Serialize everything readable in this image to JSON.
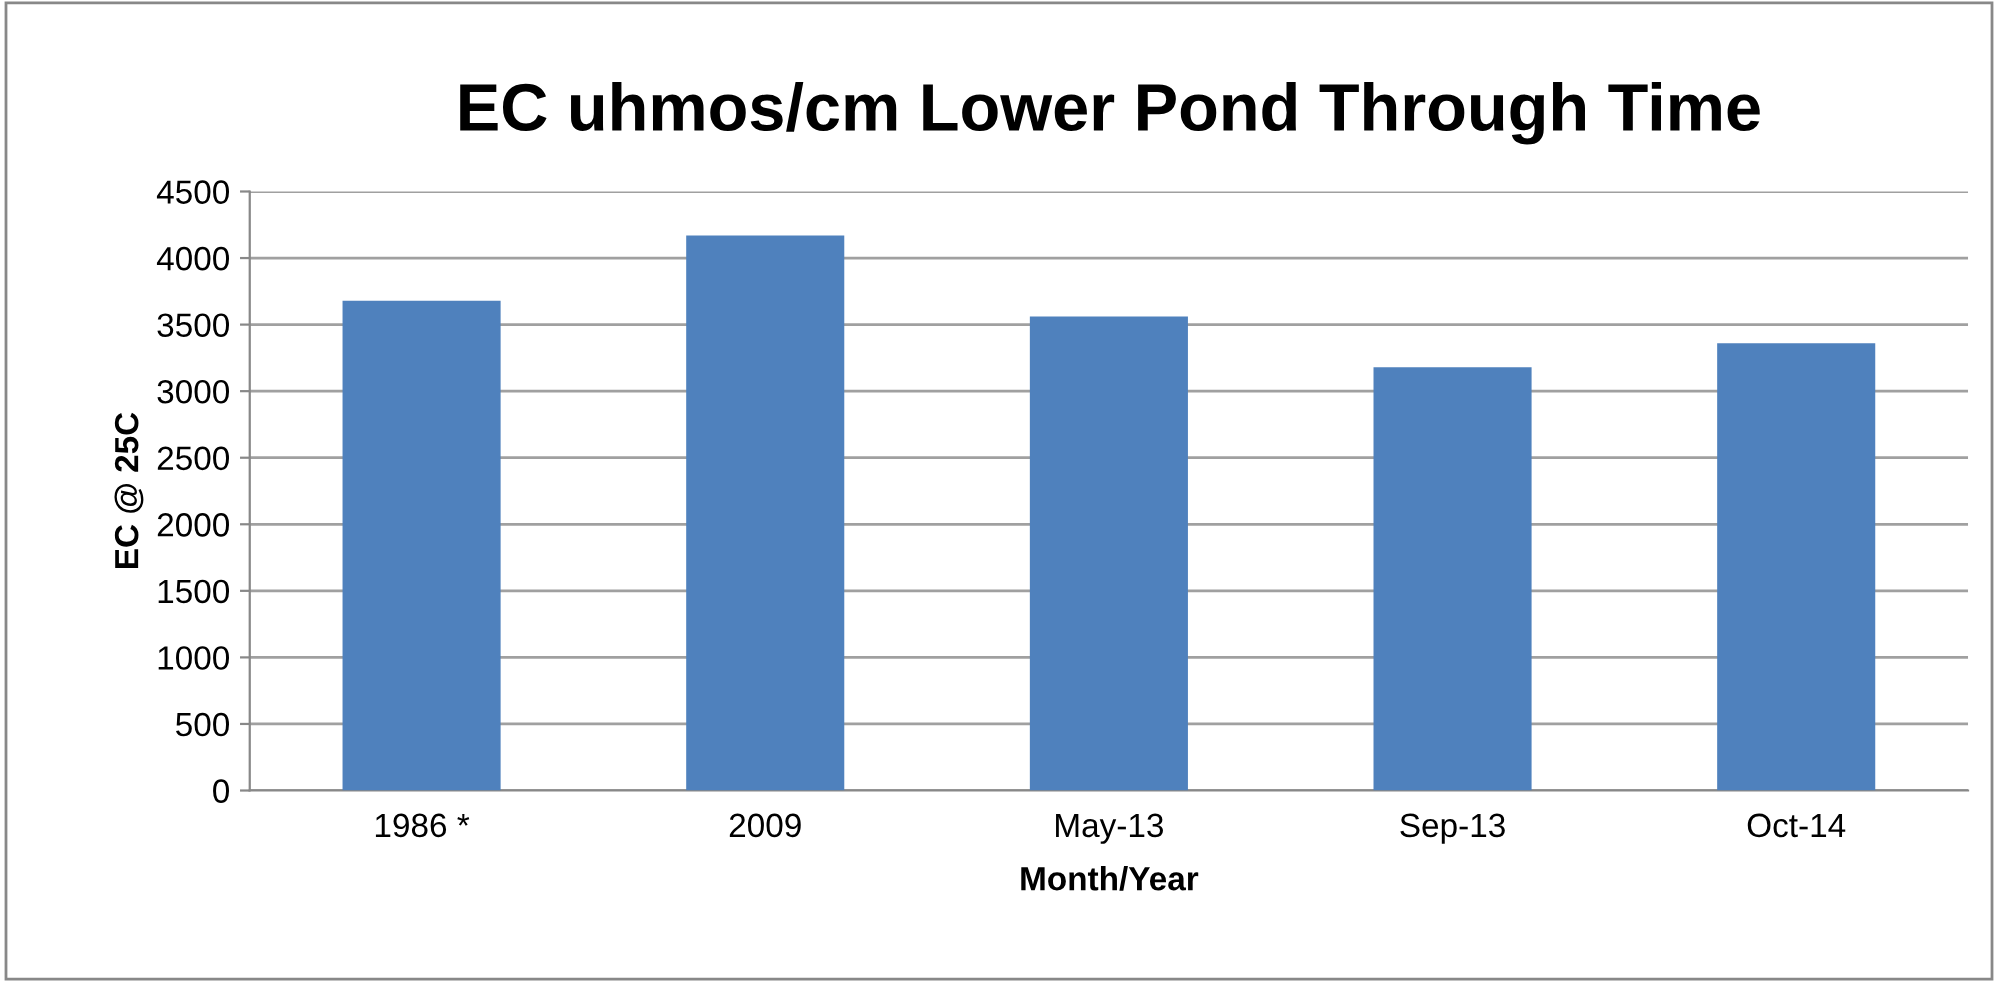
{
  "chart_data": {
    "type": "bar",
    "title": "EC uhmos/cm Lower Pond Through Time",
    "xlabel": "Month/Year",
    "ylabel": "EC @ 25C",
    "categories": [
      "1986 *",
      "2009",
      "May-13",
      "Sep-13",
      "Oct-14"
    ],
    "values": [
      3680,
      4170,
      3560,
      3180,
      3360
    ],
    "color": "#4f81bd",
    "ylim": [
      0,
      4500
    ],
    "yticks": [
      0,
      500,
      1000,
      1500,
      2000,
      2500,
      3000,
      3500,
      4000,
      4500
    ],
    "grid": "y",
    "legend": false
  }
}
